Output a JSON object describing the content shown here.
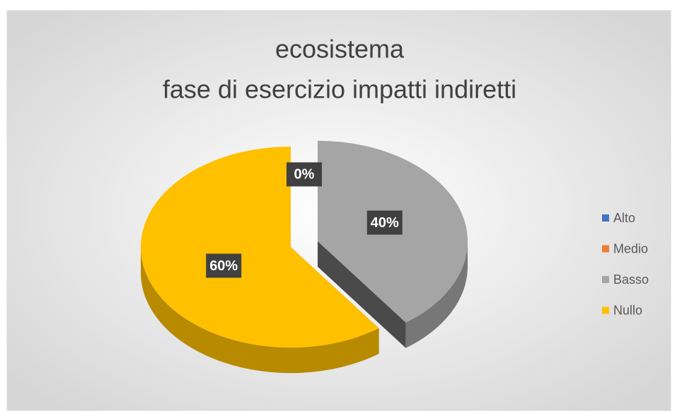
{
  "chart_data": {
    "type": "pie3d",
    "title": [
      "ecosistema",
      "fase di esercizio impatti indiretti"
    ],
    "categories": [
      "Alto",
      "Medio",
      "Basso",
      "Nullo"
    ],
    "values": [
      0,
      0,
      40,
      60
    ],
    "value_labels": [
      "0%",
      null,
      "40%",
      "60%"
    ],
    "colors": [
      "#4472c4",
      "#ed7d31",
      "#a5a5a5",
      "#ffc000"
    ],
    "legend": "right"
  }
}
